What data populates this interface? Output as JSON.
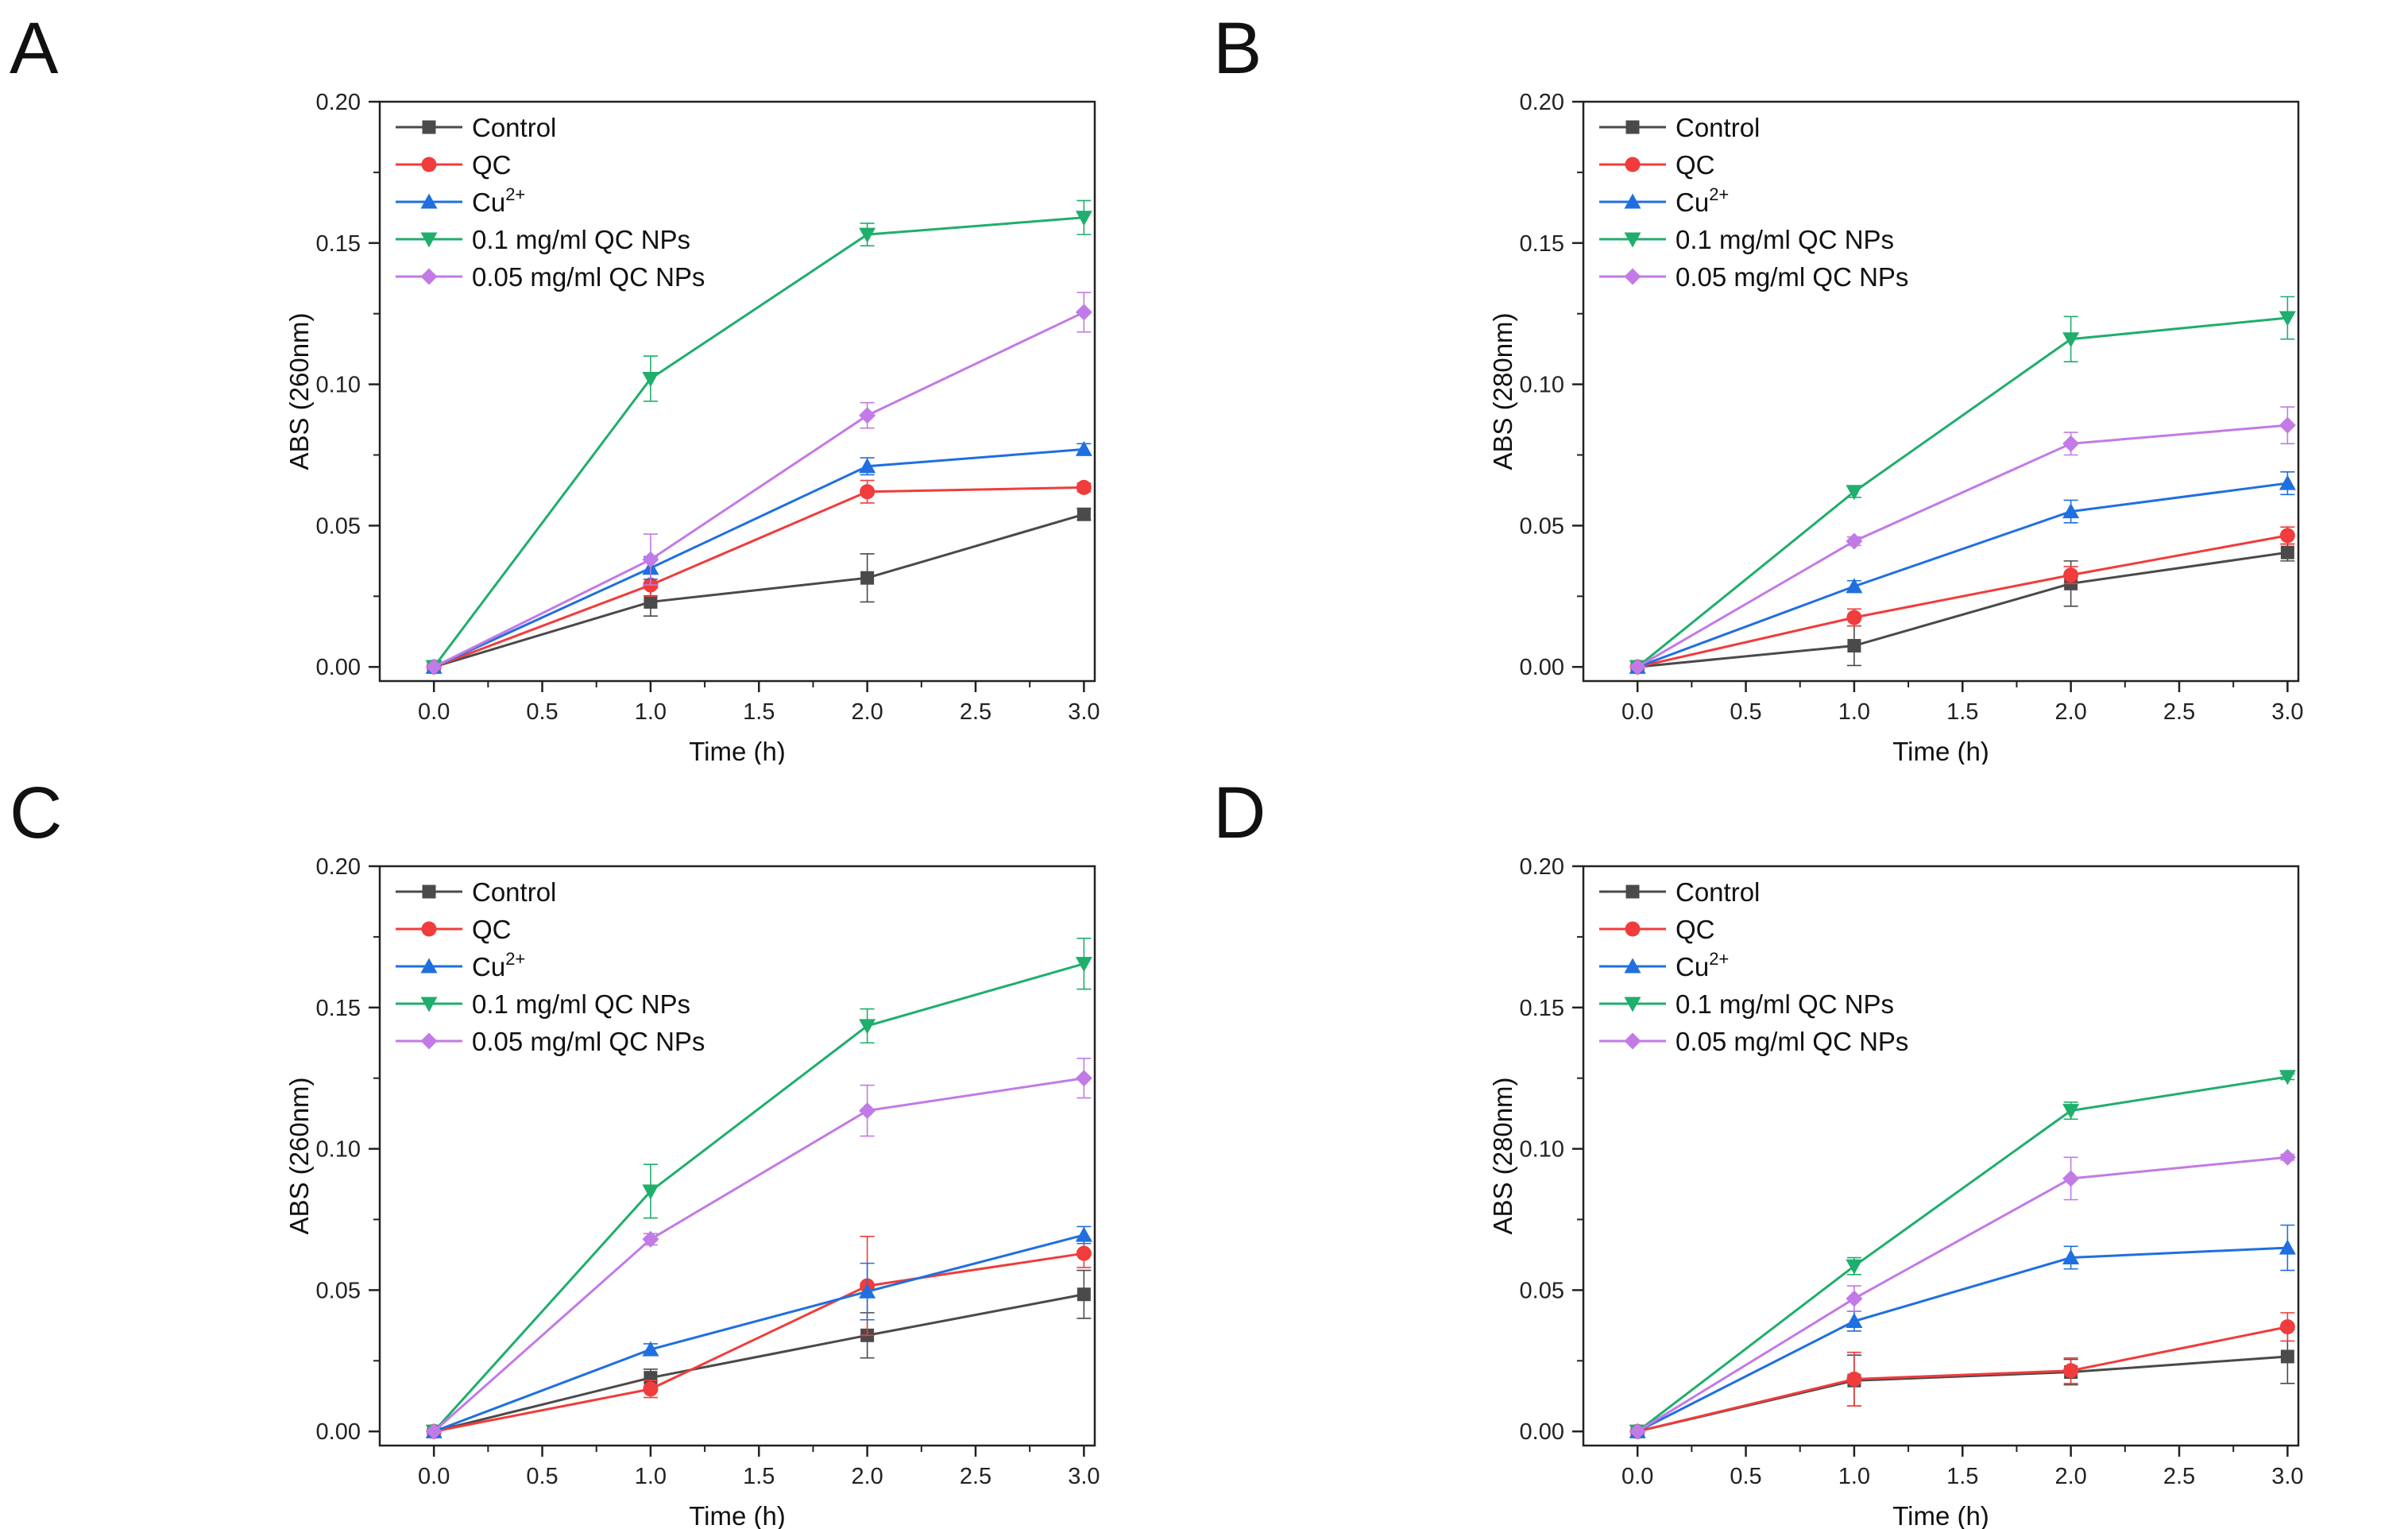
{
  "figure": {
    "series_styles": [
      {
        "name": "Control",
        "color": "#4a4a4a",
        "marker": "square"
      },
      {
        "name": "QC",
        "color": "#f03c3c",
        "marker": "circle"
      },
      {
        "name": "Cu2+",
        "color": "#1f6fe0",
        "marker": "triangle-up"
      },
      {
        "name": "0.1 mg/ml QC NPs",
        "color": "#1fae6c",
        "marker": "triangle-down"
      },
      {
        "name": "0.05 mg/ml QC NPs",
        "color": "#c27ae6",
        "marker": "diamond"
      }
    ],
    "legend_labels": {
      "control": "Control",
      "qc": "QC",
      "cu_base": "Cu",
      "cu_sup": "2+",
      "np01": "0.1 mg/ml QC NPs",
      "np005": "0.05 mg/ml QC NPs"
    }
  },
  "chart_data": [
    {
      "panel": "A",
      "type": "line",
      "xlabel": "Time (h)",
      "ylabel": "ABS (260nm)",
      "x": [
        0.0,
        1.0,
        2.0,
        3.0
      ],
      "xlim": [
        -0.25,
        3.05
      ],
      "ylim": [
        -0.005,
        0.2
      ],
      "xticks": [
        "0.0",
        "0.5",
        "1.0",
        "1.5",
        "2.0",
        "2.5",
        "3.0"
      ],
      "yticks": [
        "0.00",
        "0.05",
        "0.10",
        "0.15",
        "0.20"
      ],
      "series": [
        {
          "name": "Control",
          "values": [
            0,
            0.023,
            0.0315,
            0.054
          ],
          "errors": [
            0,
            0.005,
            0.0085,
            0.002
          ]
        },
        {
          "name": "QC",
          "values": [
            0,
            0.029,
            0.062,
            0.0635
          ],
          "errors": [
            0,
            0.004,
            0.004,
            0.0015
          ]
        },
        {
          "name": "Cu2+",
          "values": [
            0,
            0.035,
            0.071,
            0.077
          ],
          "errors": [
            0,
            0.004,
            0.003,
            0.002
          ]
        },
        {
          "name": "0.1 mg/ml QC NPs",
          "values": [
            0,
            0.102,
            0.153,
            0.159
          ],
          "errors": [
            0,
            0.008,
            0.004,
            0.006
          ]
        },
        {
          "name": "0.05 mg/ml QC NPs",
          "values": [
            0,
            0.038,
            0.089,
            0.1255
          ],
          "errors": [
            0,
            0.009,
            0.0045,
            0.007
          ]
        }
      ]
    },
    {
      "panel": "B",
      "type": "line",
      "xlabel": "Time (h)",
      "ylabel": "ABS (280nm)",
      "x": [
        0.0,
        1.0,
        2.0,
        3.0
      ],
      "xlim": [
        -0.25,
        3.05
      ],
      "ylim": [
        -0.005,
        0.2
      ],
      "xticks": [
        "0.0",
        "0.5",
        "1.0",
        "1.5",
        "2.0",
        "2.5",
        "3.0"
      ],
      "yticks": [
        "0.00",
        "0.05",
        "0.10",
        "0.15",
        "0.20"
      ],
      "series": [
        {
          "name": "Control",
          "values": [
            0,
            0.0075,
            0.0295,
            0.0405
          ],
          "errors": [
            0,
            0.007,
            0.008,
            0.003
          ]
        },
        {
          "name": "QC",
          "values": [
            0,
            0.0175,
            0.0325,
            0.0465
          ],
          "errors": [
            0,
            0.003,
            0.003,
            0.003
          ]
        },
        {
          "name": "Cu2+",
          "values": [
            0,
            0.0285,
            0.055,
            0.065
          ],
          "errors": [
            0,
            0.002,
            0.004,
            0.004
          ]
        },
        {
          "name": "0.1 mg/ml QC NPs",
          "values": [
            0,
            0.062,
            0.116,
            0.1235
          ],
          "errors": [
            0,
            0.002,
            0.008,
            0.0075
          ]
        },
        {
          "name": "0.05 mg/ml QC NPs",
          "values": [
            0,
            0.0445,
            0.079,
            0.0855
          ],
          "errors": [
            0,
            0.0015,
            0.004,
            0.0065
          ]
        }
      ]
    },
    {
      "panel": "C",
      "type": "line",
      "xlabel": "Time (h)",
      "ylabel": "ABS (260nm)",
      "x": [
        0.0,
        1.0,
        2.0,
        3.0
      ],
      "xlim": [
        -0.25,
        3.05
      ],
      "ylim": [
        -0.005,
        0.2
      ],
      "xticks": [
        "0.0",
        "0.5",
        "1.0",
        "1.5",
        "2.0",
        "2.5",
        "3.0"
      ],
      "yticks": [
        "0.00",
        "0.05",
        "0.10",
        "0.15",
        "0.20"
      ],
      "series": [
        {
          "name": "Control",
          "values": [
            0,
            0.019,
            0.034,
            0.0485
          ],
          "errors": [
            0,
            0.003,
            0.008,
            0.0085
          ]
        },
        {
          "name": "QC",
          "values": [
            0,
            0.015,
            0.0515,
            0.063
          ],
          "errors": [
            0,
            0.003,
            0.0175,
            0.005
          ]
        },
        {
          "name": "Cu2+",
          "values": [
            0,
            0.029,
            0.0495,
            0.0695
          ],
          "errors": [
            0,
            0.002,
            0.01,
            0.003
          ]
        },
        {
          "name": "0.1 mg/ml QC NPs",
          "values": [
            0,
            0.085,
            0.1435,
            0.1655
          ],
          "errors": [
            0,
            0.0095,
            0.006,
            0.009
          ]
        },
        {
          "name": "0.05 mg/ml QC NPs",
          "values": [
            0,
            0.068,
            0.1135,
            0.125
          ],
          "errors": [
            0,
            0.002,
            0.009,
            0.007
          ]
        }
      ]
    },
    {
      "panel": "D",
      "type": "line",
      "xlabel": "Time (h)",
      "ylabel": "ABS (280nm)",
      "x": [
        0.0,
        1.0,
        2.0,
        3.0
      ],
      "xlim": [
        -0.25,
        3.05
      ],
      "ylim": [
        -0.005,
        0.2
      ],
      "xticks": [
        "0.0",
        "0.5",
        "1.0",
        "1.5",
        "2.0",
        "2.5",
        "3.0"
      ],
      "yticks": [
        "0.00",
        "0.05",
        "0.10",
        "0.15",
        "0.20"
      ],
      "series": [
        {
          "name": "Control",
          "values": [
            0,
            0.018,
            0.021,
            0.0265
          ],
          "errors": [
            0,
            0.009,
            0.0045,
            0.0095
          ]
        },
        {
          "name": "QC",
          "values": [
            0,
            0.0185,
            0.0215,
            0.037
          ],
          "errors": [
            0,
            0.0095,
            0.0045,
            0.005
          ]
        },
        {
          "name": "Cu2+",
          "values": [
            0,
            0.039,
            0.0615,
            0.065
          ],
          "errors": [
            0,
            0.0035,
            0.004,
            0.008
          ]
        },
        {
          "name": "0.1 mg/ml QC NPs",
          "values": [
            0,
            0.0585,
            0.1135,
            0.1255
          ],
          "errors": [
            0,
            0.003,
            0.003,
            0.001
          ]
        },
        {
          "name": "0.05 mg/ml QC NPs",
          "values": [
            0,
            0.047,
            0.0895,
            0.097
          ],
          "errors": [
            0,
            0.0045,
            0.0075,
            0.001
          ]
        }
      ]
    }
  ]
}
